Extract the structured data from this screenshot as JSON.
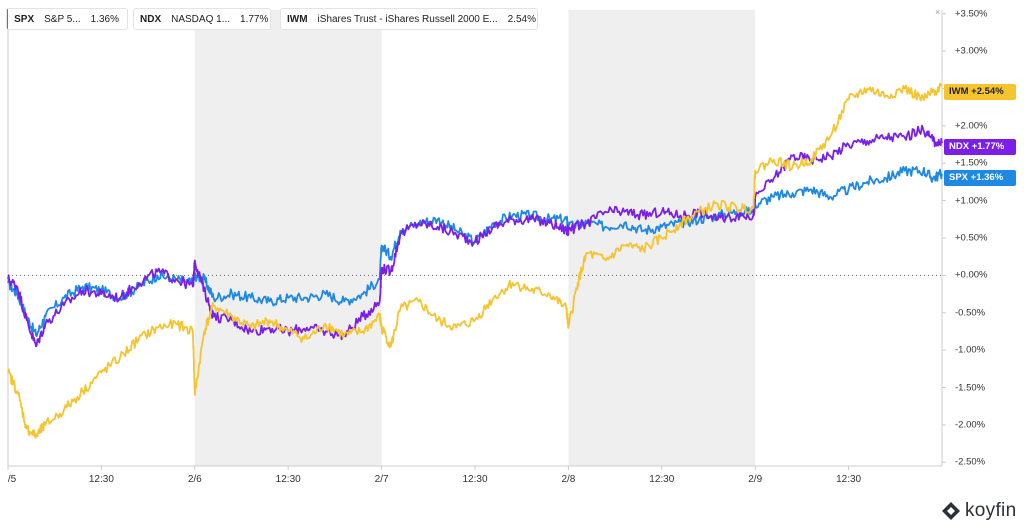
{
  "legend": [
    {
      "ticker": "SPX",
      "name": "S&P 5...",
      "pct": "1.36%",
      "color": "#1e88e5"
    },
    {
      "ticker": "NDX",
      "name": "NASDAQ 1...",
      "pct": "1.77%",
      "color": "#7b1fe8"
    },
    {
      "ticker": "IWM",
      "name": "iShares Trust - iShares Russell 2000 E...",
      "pct": "2.54%",
      "color": "#f5c42e"
    }
  ],
  "close_label": "×",
  "badges": [
    {
      "ticker": "IWM",
      "value": "+2.54%",
      "color": "#f5c42e",
      "text_color": "#222222"
    },
    {
      "ticker": "NDX",
      "value": "+1.77%",
      "color": "#7b1fe8",
      "text_color": "#ffffff"
    },
    {
      "ticker": "SPX",
      "value": "+1.36%",
      "color": "#1e88e5",
      "text_color": "#ffffff"
    }
  ],
  "brand": {
    "name": "koyfin"
  },
  "chart_data": {
    "type": "line",
    "y_unit": "% change",
    "ylim": [
      -2.55,
      3.55
    ],
    "yticks": [
      {
        "v": 3.5,
        "label": "+3.50%"
      },
      {
        "v": 3.0,
        "label": "+3.00%"
      },
      {
        "v": 2.5,
        "label": "+2.50%"
      },
      {
        "v": 2.0,
        "label": "+2.00%"
      },
      {
        "v": 1.5,
        "label": "+1.50%"
      },
      {
        "v": 1.0,
        "label": "+1.00%"
      },
      {
        "v": 0.5,
        "label": "+0.50%"
      },
      {
        "v": 0.0,
        "label": "+0.00%"
      },
      {
        "v": -0.5,
        "label": "-0.50%"
      },
      {
        "v": -1.0,
        "label": "-1.00%"
      },
      {
        "v": -1.5,
        "label": "-1.50%"
      },
      {
        "v": -2.0,
        "label": "-2.00%"
      },
      {
        "v": -2.5,
        "label": "-2.50%"
      }
    ],
    "xlim": [
      0,
      5
    ],
    "xticks": [
      {
        "v": 0.0,
        "label": "/5"
      },
      {
        "v": 0.5,
        "label": "12:30"
      },
      {
        "v": 1.0,
        "label": "2/6"
      },
      {
        "v": 1.5,
        "label": "12:30"
      },
      {
        "v": 2.0,
        "label": "2/7"
      },
      {
        "v": 2.5,
        "label": "12:30"
      },
      {
        "v": 3.0,
        "label": "2/8"
      },
      {
        "v": 3.5,
        "label": "12:30"
      },
      {
        "v": 4.0,
        "label": "2/9"
      },
      {
        "v": 4.5,
        "label": "12:30"
      }
    ],
    "shaded_days": [
      [
        1,
        2
      ],
      [
        3,
        4
      ]
    ],
    "zero_line": true,
    "series": [
      {
        "name": "SPX",
        "color": "#1e88e5",
        "points": [
          [
            0.0,
            -0.1
          ],
          [
            0.05,
            -0.25
          ],
          [
            0.1,
            -0.55
          ],
          [
            0.15,
            -0.8
          ],
          [
            0.2,
            -0.55
          ],
          [
            0.3,
            -0.3
          ],
          [
            0.4,
            -0.15
          ],
          [
            0.5,
            -0.2
          ],
          [
            0.6,
            -0.3
          ],
          [
            0.7,
            -0.15
          ],
          [
            0.8,
            0.0
          ],
          [
            0.9,
            -0.05
          ],
          [
            0.99,
            -0.1
          ],
          [
            1.0,
            0.0
          ],
          [
            1.05,
            -0.05
          ],
          [
            1.1,
            -0.3
          ],
          [
            1.2,
            -0.25
          ],
          [
            1.3,
            -0.3
          ],
          [
            1.4,
            -0.35
          ],
          [
            1.5,
            -0.3
          ],
          [
            1.6,
            -0.3
          ],
          [
            1.7,
            -0.25
          ],
          [
            1.8,
            -0.35
          ],
          [
            1.9,
            -0.25
          ],
          [
            1.99,
            -0.05
          ],
          [
            2.0,
            0.4
          ],
          [
            2.05,
            0.25
          ],
          [
            2.1,
            0.6
          ],
          [
            2.2,
            0.7
          ],
          [
            2.3,
            0.75
          ],
          [
            2.4,
            0.6
          ],
          [
            2.5,
            0.45
          ],
          [
            2.6,
            0.7
          ],
          [
            2.7,
            0.8
          ],
          [
            2.8,
            0.8
          ],
          [
            2.9,
            0.75
          ],
          [
            2.99,
            0.75
          ],
          [
            3.0,
            0.65
          ],
          [
            3.1,
            0.7
          ],
          [
            3.2,
            0.65
          ],
          [
            3.3,
            0.7
          ],
          [
            3.4,
            0.6
          ],
          [
            3.5,
            0.65
          ],
          [
            3.6,
            0.7
          ],
          [
            3.7,
            0.75
          ],
          [
            3.8,
            0.8
          ],
          [
            3.9,
            0.85
          ],
          [
            3.99,
            0.85
          ],
          [
            4.0,
            0.95
          ],
          [
            4.1,
            1.05
          ],
          [
            4.2,
            1.1
          ],
          [
            4.3,
            1.15
          ],
          [
            4.4,
            1.05
          ],
          [
            4.5,
            1.15
          ],
          [
            4.6,
            1.25
          ],
          [
            4.7,
            1.3
          ],
          [
            4.8,
            1.4
          ],
          [
            4.9,
            1.4
          ],
          [
            4.95,
            1.3
          ],
          [
            5.0,
            1.36
          ]
        ]
      },
      {
        "name": "NDX",
        "color": "#7b1fe8",
        "points": [
          [
            0.0,
            -0.05
          ],
          [
            0.05,
            -0.15
          ],
          [
            0.1,
            -0.6
          ],
          [
            0.15,
            -0.95
          ],
          [
            0.2,
            -0.65
          ],
          [
            0.3,
            -0.4
          ],
          [
            0.4,
            -0.2
          ],
          [
            0.5,
            -0.25
          ],
          [
            0.6,
            -0.3
          ],
          [
            0.7,
            -0.1
          ],
          [
            0.8,
            0.05
          ],
          [
            0.9,
            -0.05
          ],
          [
            0.99,
            -0.15
          ],
          [
            1.0,
            0.2
          ],
          [
            1.05,
            -0.2
          ],
          [
            1.1,
            -0.55
          ],
          [
            1.2,
            -0.6
          ],
          [
            1.3,
            -0.75
          ],
          [
            1.4,
            -0.7
          ],
          [
            1.5,
            -0.75
          ],
          [
            1.6,
            -0.7
          ],
          [
            1.7,
            -0.75
          ],
          [
            1.8,
            -0.8
          ],
          [
            1.9,
            -0.55
          ],
          [
            1.99,
            -0.35
          ],
          [
            2.0,
            0.1
          ],
          [
            2.05,
            0.05
          ],
          [
            2.1,
            0.55
          ],
          [
            2.2,
            0.7
          ],
          [
            2.3,
            0.65
          ],
          [
            2.4,
            0.55
          ],
          [
            2.5,
            0.45
          ],
          [
            2.6,
            0.65
          ],
          [
            2.7,
            0.75
          ],
          [
            2.8,
            0.75
          ],
          [
            2.9,
            0.7
          ],
          [
            2.99,
            0.6
          ],
          [
            3.0,
            0.6
          ],
          [
            3.1,
            0.7
          ],
          [
            3.2,
            0.85
          ],
          [
            3.3,
            0.85
          ],
          [
            3.4,
            0.8
          ],
          [
            3.5,
            0.85
          ],
          [
            3.6,
            0.8
          ],
          [
            3.7,
            0.85
          ],
          [
            3.8,
            0.75
          ],
          [
            3.9,
            0.8
          ],
          [
            3.99,
            0.8
          ],
          [
            4.0,
            1.05
          ],
          [
            4.1,
            1.3
          ],
          [
            4.2,
            1.6
          ],
          [
            4.3,
            1.55
          ],
          [
            4.4,
            1.6
          ],
          [
            4.5,
            1.75
          ],
          [
            4.6,
            1.8
          ],
          [
            4.7,
            1.85
          ],
          [
            4.8,
            1.85
          ],
          [
            4.9,
            1.95
          ],
          [
            4.95,
            1.8
          ],
          [
            5.0,
            1.77
          ]
        ]
      },
      {
        "name": "IWM",
        "color": "#f5c42e",
        "points": [
          [
            0.0,
            -1.3
          ],
          [
            0.05,
            -1.55
          ],
          [
            0.1,
            -2.05
          ],
          [
            0.15,
            -2.15
          ],
          [
            0.2,
            -2.0
          ],
          [
            0.3,
            -1.8
          ],
          [
            0.4,
            -1.55
          ],
          [
            0.5,
            -1.3
          ],
          [
            0.6,
            -1.1
          ],
          [
            0.7,
            -0.85
          ],
          [
            0.8,
            -0.7
          ],
          [
            0.9,
            -0.65
          ],
          [
            0.99,
            -0.75
          ],
          [
            1.0,
            -1.6
          ],
          [
            1.05,
            -0.75
          ],
          [
            1.1,
            -0.4
          ],
          [
            1.2,
            -0.55
          ],
          [
            1.3,
            -0.7
          ],
          [
            1.4,
            -0.6
          ],
          [
            1.5,
            -0.75
          ],
          [
            1.6,
            -0.85
          ],
          [
            1.7,
            -0.65
          ],
          [
            1.8,
            -0.8
          ],
          [
            1.9,
            -0.75
          ],
          [
            1.99,
            -0.55
          ],
          [
            2.0,
            -0.7
          ],
          [
            2.05,
            -0.95
          ],
          [
            2.1,
            -0.45
          ],
          [
            2.2,
            -0.35
          ],
          [
            2.3,
            -0.6
          ],
          [
            2.4,
            -0.7
          ],
          [
            2.5,
            -0.6
          ],
          [
            2.6,
            -0.3
          ],
          [
            2.7,
            -0.1
          ],
          [
            2.8,
            -0.2
          ],
          [
            2.9,
            -0.25
          ],
          [
            2.99,
            -0.45
          ],
          [
            3.0,
            -0.7
          ],
          [
            3.05,
            -0.1
          ],
          [
            3.1,
            0.3
          ],
          [
            3.2,
            0.2
          ],
          [
            3.3,
            0.4
          ],
          [
            3.4,
            0.35
          ],
          [
            3.5,
            0.5
          ],
          [
            3.6,
            0.7
          ],
          [
            3.7,
            0.85
          ],
          [
            3.8,
            0.95
          ],
          [
            3.9,
            0.9
          ],
          [
            3.99,
            0.9
          ],
          [
            4.0,
            1.4
          ],
          [
            4.1,
            1.55
          ],
          [
            4.2,
            1.45
          ],
          [
            4.3,
            1.55
          ],
          [
            4.4,
            1.85
          ],
          [
            4.5,
            2.35
          ],
          [
            4.6,
            2.5
          ],
          [
            4.7,
            2.4
          ],
          [
            4.8,
            2.5
          ],
          [
            4.9,
            2.35
          ],
          [
            4.95,
            2.45
          ],
          [
            5.0,
            2.54
          ]
        ]
      }
    ]
  }
}
